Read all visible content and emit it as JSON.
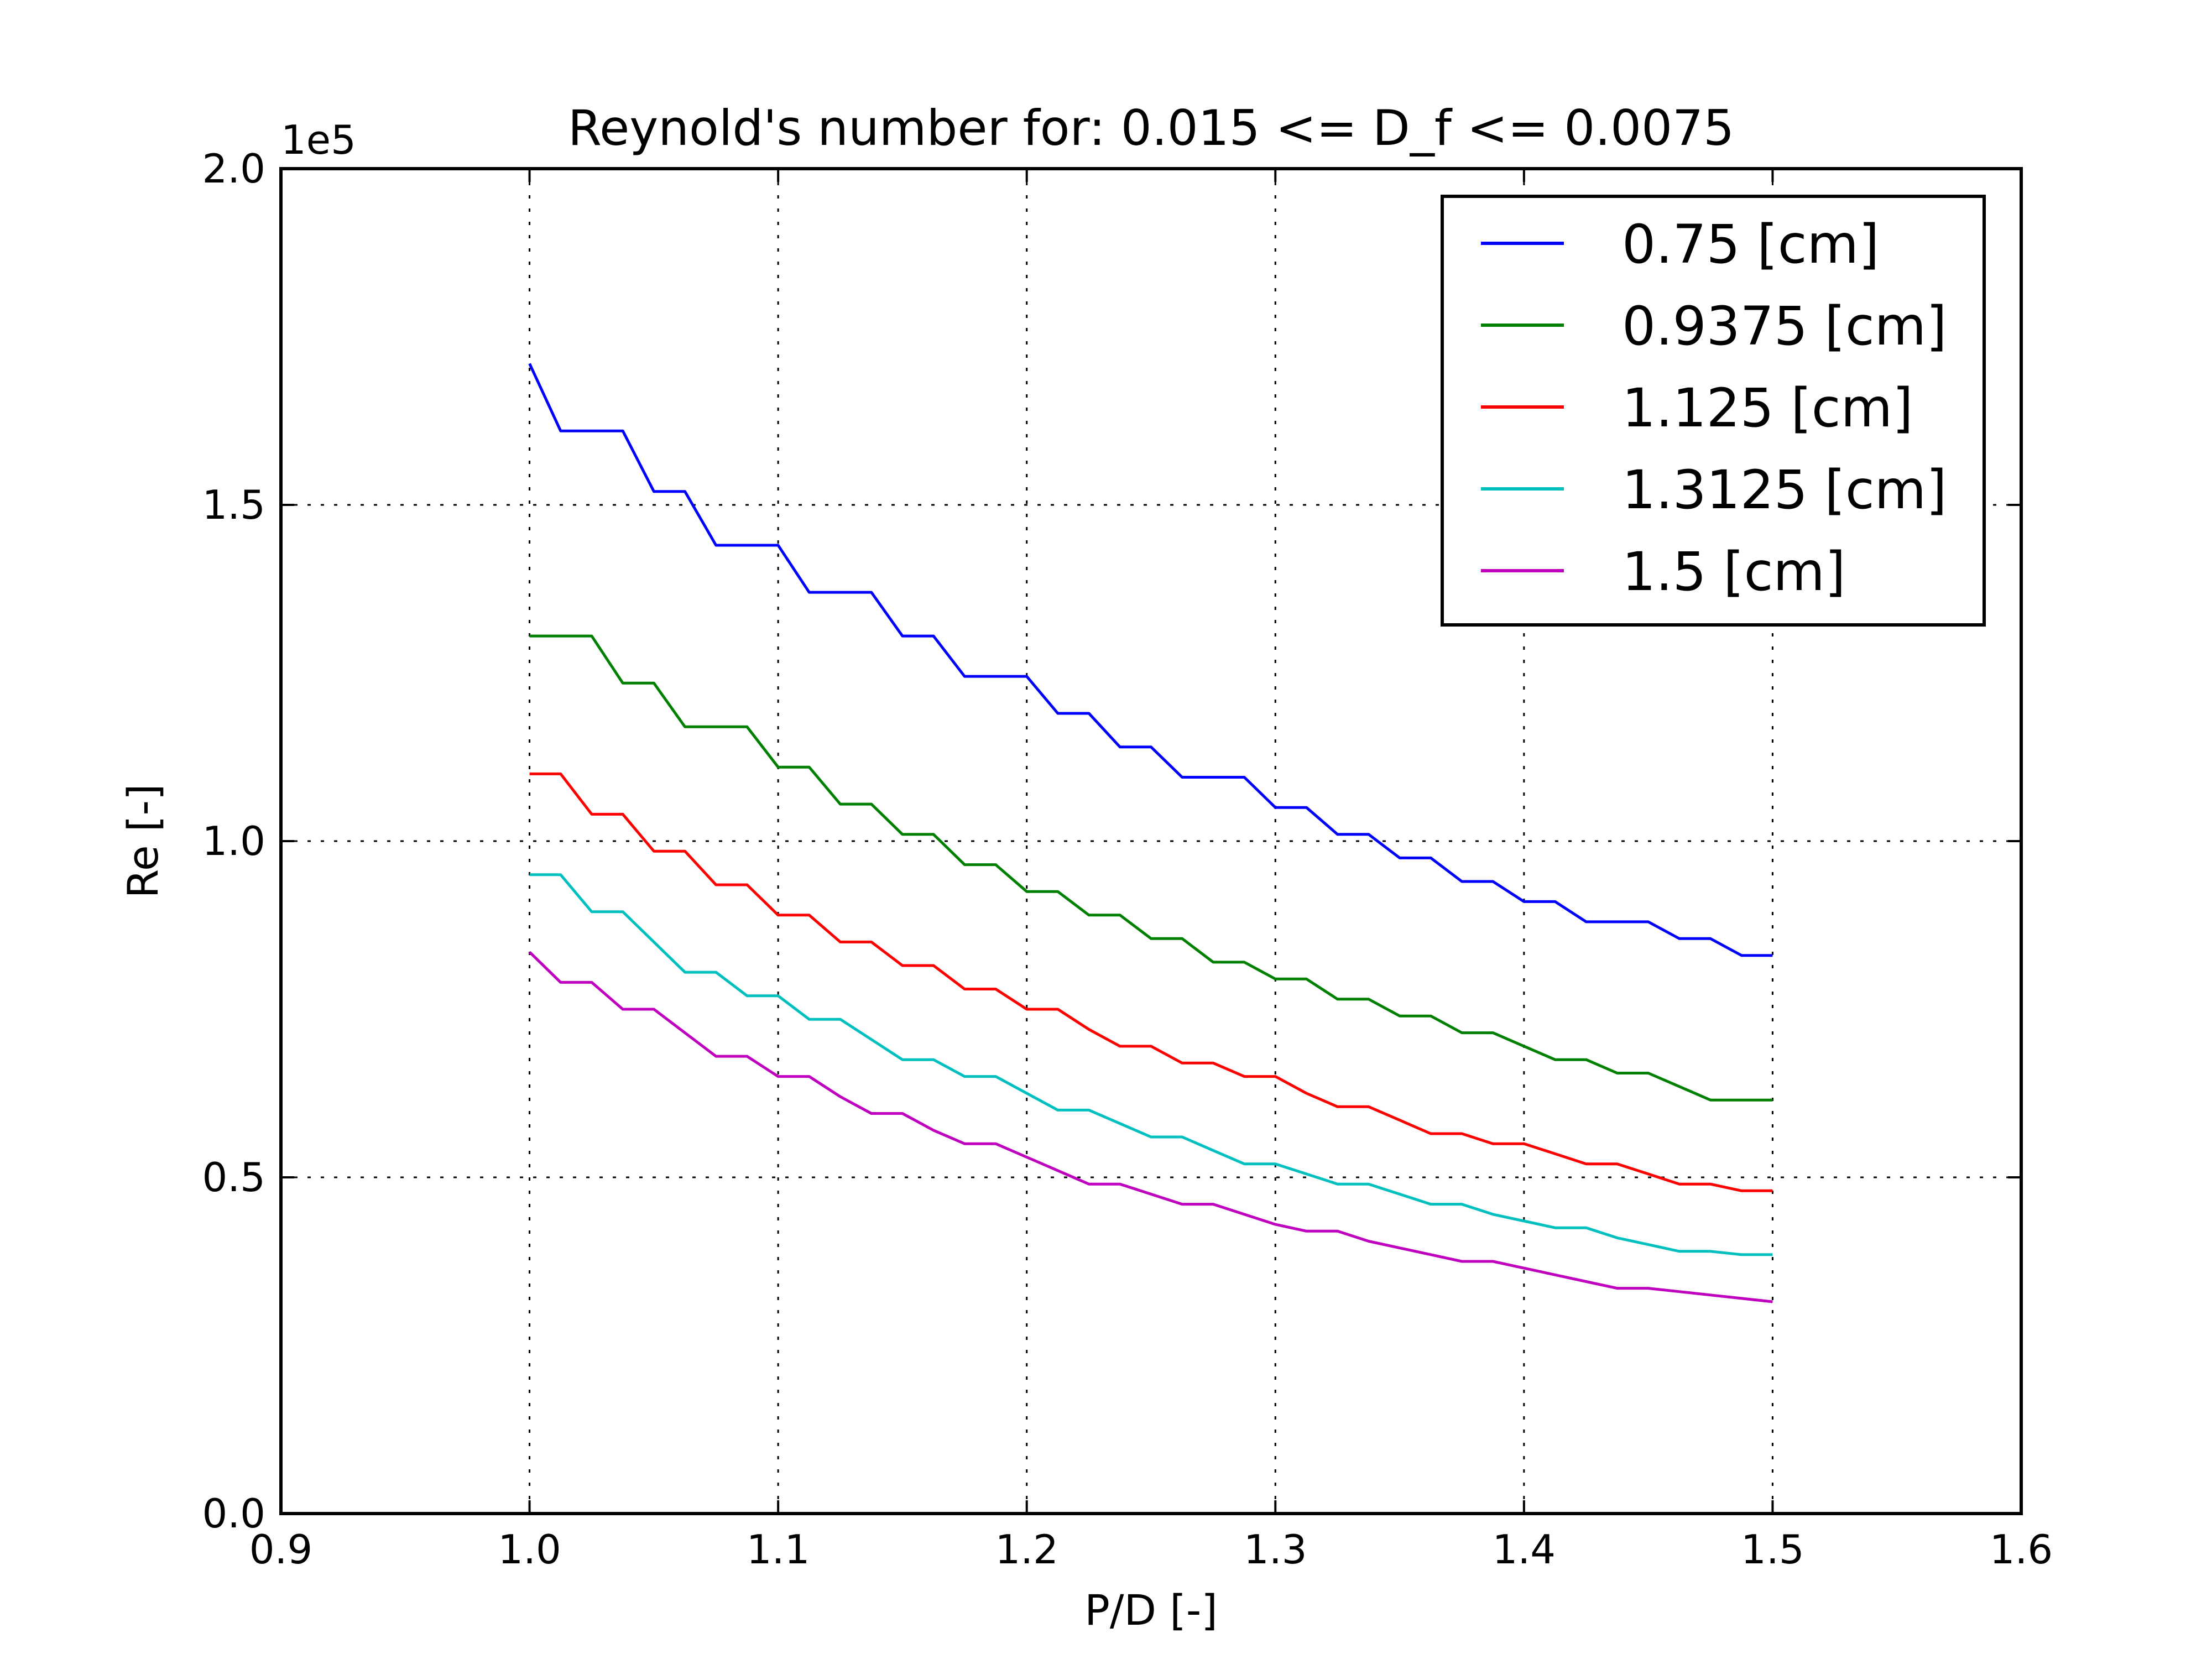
{
  "chart_data": {
    "type": "line",
    "title": "Reynold's number for: 0.015 <= D_f <= 0.0075",
    "xlabel": "P/D [-]",
    "ylabel": "Re [-]",
    "y_offset_label": "1e5",
    "xlim": [
      0.9,
      1.6
    ],
    "ylim": [
      0,
      200000
    ],
    "x_ticks": [
      0.9,
      1.0,
      1.1,
      1.2,
      1.3,
      1.4,
      1.5,
      1.6
    ],
    "x_tick_labels": [
      "0.9",
      "1.0",
      "1.1",
      "1.2",
      "1.3",
      "1.4",
      "1.5",
      "1.6"
    ],
    "y_ticks": [
      0,
      50000,
      100000,
      150000,
      200000
    ],
    "y_tick_labels": [
      "0.0",
      "0.5",
      "1.0",
      "1.5",
      "2.0"
    ],
    "grid": true,
    "legend_position": "top-right",
    "x": [
      1.0,
      1.0125,
      1.025,
      1.0375,
      1.05,
      1.0625,
      1.075,
      1.0875,
      1.1,
      1.1125,
      1.125,
      1.1375,
      1.15,
      1.1625,
      1.175,
      1.1875,
      1.2,
      1.2125,
      1.225,
      1.2375,
      1.25,
      1.2625,
      1.275,
      1.2875,
      1.3,
      1.3125,
      1.325,
      1.3375,
      1.35,
      1.3625,
      1.375,
      1.3875,
      1.4,
      1.4125,
      1.425,
      1.4375,
      1.45,
      1.4625,
      1.475,
      1.4875,
      1.5
    ],
    "series": [
      {
        "name": "0.75 [cm]",
        "color": "#0000ff",
        "values": [
          171000,
          161000,
          161000,
          161000,
          152000,
          152000,
          144000,
          144000,
          144000,
          137000,
          137000,
          137000,
          130500,
          130500,
          124500,
          124500,
          124500,
          119000,
          119000,
          114000,
          114000,
          109500,
          109500,
          109500,
          105000,
          105000,
          101000,
          101000,
          97500,
          97500,
          94000,
          94000,
          91000,
          91000,
          88000,
          88000,
          88000,
          85500,
          85500,
          83000,
          83000
        ]
      },
      {
        "name": "0.9375 [cm]",
        "color": "#008000",
        "values": [
          130500,
          130500,
          130500,
          123500,
          123500,
          117000,
          117000,
          117000,
          111000,
          111000,
          105500,
          105500,
          101000,
          101000,
          96500,
          96500,
          92500,
          92500,
          89000,
          89000,
          85500,
          85500,
          82000,
          82000,
          79500,
          79500,
          76500,
          76500,
          74000,
          74000,
          71500,
          71500,
          69500,
          67500,
          67500,
          65500,
          65500,
          63500,
          61500,
          61500,
          61500
        ]
      },
      {
        "name": "1.125 [cm]",
        "color": "#ff0000",
        "values": [
          110000,
          110000,
          104000,
          104000,
          98500,
          98500,
          93500,
          93500,
          89000,
          89000,
          85000,
          85000,
          81500,
          81500,
          78000,
          78000,
          75000,
          75000,
          72000,
          69500,
          69500,
          67000,
          67000,
          65000,
          65000,
          62500,
          60500,
          60500,
          58500,
          56500,
          56500,
          55000,
          55000,
          53500,
          52000,
          52000,
          50500,
          49000,
          49000,
          48000,
          48000
        ]
      },
      {
        "name": "1.3125 [cm]",
        "color": "#00bfbf",
        "values": [
          95000,
          95000,
          89500,
          89500,
          85000,
          80500,
          80500,
          77000,
          77000,
          73500,
          73500,
          70500,
          67500,
          67500,
          65000,
          65000,
          62500,
          60000,
          60000,
          58000,
          56000,
          56000,
          54000,
          52000,
          52000,
          50500,
          49000,
          49000,
          47500,
          46000,
          46000,
          44500,
          43500,
          42500,
          42500,
          41000,
          40000,
          39000,
          39000,
          38500,
          38500
        ]
      },
      {
        "name": "1.5 [cm]",
        "color": "#bf00bf",
        "values": [
          83500,
          79000,
          79000,
          75000,
          75000,
          71500,
          68000,
          68000,
          65000,
          65000,
          62000,
          59500,
          59500,
          57000,
          55000,
          55000,
          53000,
          51000,
          49000,
          49000,
          47500,
          46000,
          46000,
          44500,
          43000,
          42000,
          42000,
          40500,
          39500,
          38500,
          37500,
          37500,
          36500,
          35500,
          34500,
          33500,
          33500,
          33000,
          32500,
          32000,
          31500
        ]
      }
    ]
  }
}
